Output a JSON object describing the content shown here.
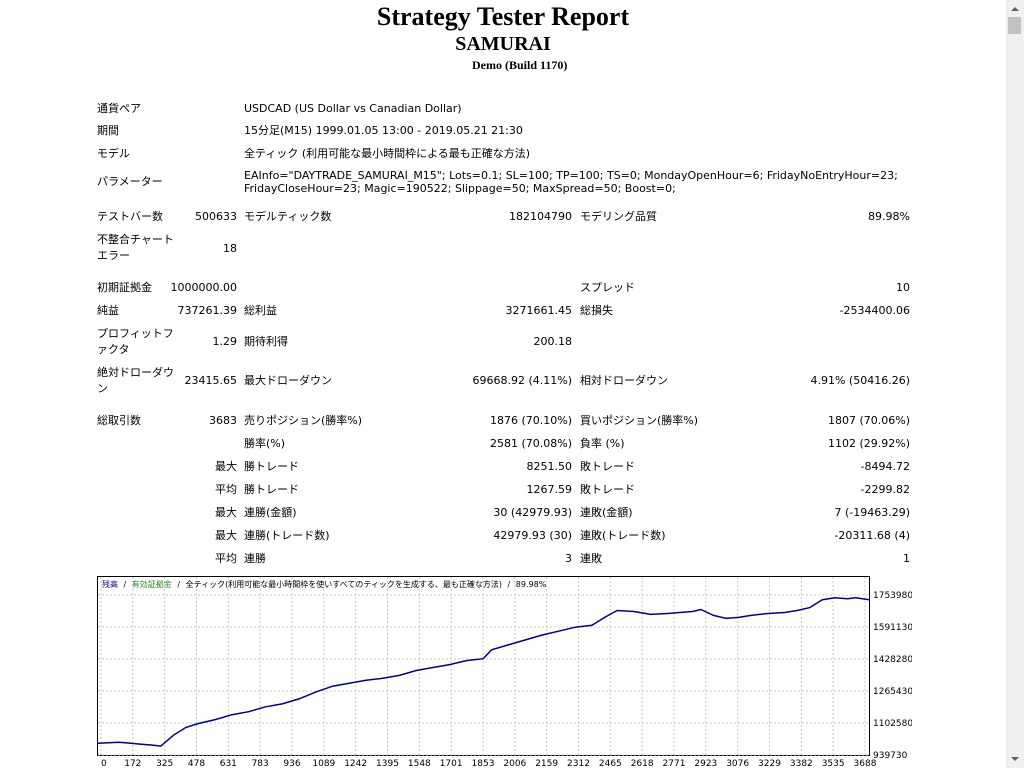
{
  "header": {
    "title": "Strategy Tester Report",
    "subtitle": "SAMURAI",
    "build": "Demo (Build 1170)"
  },
  "info": {
    "symbol_label": "通貨ペア",
    "symbol_value": "USDCAD (US Dollar vs Canadian Dollar)",
    "period_label": "期間",
    "period_value": "15分足(M15) 1999.01.05 13:00 - 2019.05.21 21:30",
    "model_label": "モデル",
    "model_value": "全ティック (利用可能な最小時間枠による最も正確な方法)",
    "params_label": "パラメーター",
    "params_line1": "EAInfo=\"DAYTRADE_SAMURAI_M15\"; Lots=0.1; SL=100; TP=100; TS=0; MondayOpenHour=6; FridayNoEntryHour=23;",
    "params_line2": "FridayCloseHour=23; Magic=190522; Slippage=50; MaxSpread=50; Boost=0;"
  },
  "stats": {
    "bars_label": "テストバー数",
    "bars_value": "500633",
    "ticks_label": "モデルティック数",
    "ticks_value": "182104790",
    "quality_label": "モデリング品質",
    "quality_value": "89.98%",
    "mismatch_label_1": "不整合チャート",
    "mismatch_label_2": "エラー",
    "mismatch_value": "18",
    "deposit_label": "初期証拠金",
    "deposit_value": "1000000.00",
    "spread_label": "スプレッド",
    "spread_value": "10",
    "net_label": "純益",
    "net_value": "737261.39",
    "gross_profit_label": "総利益",
    "gross_profit_value": "3271661.45",
    "gross_loss_label": "総損失",
    "gross_loss_value": "-2534400.06",
    "pf_label_1": "プロフィットフ",
    "pf_label_2": "ァクタ",
    "pf_value": "1.29",
    "expected_label": "期待利得",
    "expected_value": "200.18",
    "abs_dd_label_1": "絶対ドローダウ",
    "abs_dd_label_2": "ン",
    "abs_dd_value": "23415.65",
    "max_dd_label": "最大ドローダウン",
    "max_dd_value": "69668.92 (4.11%)",
    "rel_dd_label": "相対ドローダウン",
    "rel_dd_value": "4.91% (50416.26)",
    "trades_label": "総取引数",
    "trades_value": "3683",
    "short_label": "売りポジション(勝率%)",
    "short_value": "1876 (70.10%)",
    "long_label": "買いポジション(勝率%)",
    "long_value": "1807 (70.06%)",
    "win_rate_label": "勝率(%)",
    "win_rate_value": "2581 (70.08%)",
    "loss_rate_label": "負率 (%)",
    "loss_rate_value": "1102 (29.92%)",
    "max_label": "最大",
    "avg_label": "平均",
    "largest_win_label": "勝トレード",
    "largest_win_value": "8251.50",
    "largest_loss_label": "敗トレード",
    "largest_loss_value": "-8494.72",
    "avg_win_label": "勝トレード",
    "avg_win_value": "1267.59",
    "avg_loss_label": "敗トレード",
    "avg_loss_value": "-2299.82",
    "max_cons_win_label": "連勝(金額)",
    "max_cons_win_value": "30 (42979.93)",
    "max_cons_loss_label": "連敗(金額)",
    "max_cons_loss_value": "7 (-19463.29)",
    "max_cons_profit_label": "連勝(トレード数)",
    "max_cons_profit_value": "42979.93 (30)",
    "max_cons_lossamt_label": "連敗(トレード数)",
    "max_cons_lossamt_value": "-20311.68 (4)",
    "avg_cons_win_label": "連勝",
    "avg_cons_win_value": "3",
    "avg_cons_loss_label": "連敗",
    "avg_cons_loss_value": "1"
  },
  "chart_data": {
    "type": "line",
    "legend_balance": "残高",
    "legend_equity": "有効証拠金",
    "legend_info": "全ティック(利用可能な最小時間枠を使いすべてのティックを生成する、最も正確な方法)",
    "legend_quality": "89.98%",
    "legend_sep": "/",
    "x_ticks": [
      "0",
      "172",
      "325",
      "478",
      "631",
      "783",
      "936",
      "1089",
      "1242",
      "1395",
      "1548",
      "1701",
      "1853",
      "2006",
      "2159",
      "2312",
      "2465",
      "2618",
      "2771",
      "2923",
      "3076",
      "3229",
      "3382",
      "3535",
      "3688"
    ],
    "y_ticks": [
      "1753980",
      "1591130",
      "1428280",
      "1265430",
      "1102580",
      "939730"
    ],
    "xlim": [
      0,
      3683
    ],
    "ylim": [
      939730,
      1753980
    ],
    "x": [
      0,
      100,
      200,
      260,
      300,
      360,
      420,
      480,
      560,
      640,
      720,
      800,
      880,
      960,
      1040,
      1120,
      1200,
      1280,
      1360,
      1440,
      1520,
      1600,
      1680,
      1760,
      1840,
      1880,
      1960,
      2040,
      2120,
      2200,
      2280,
      2360,
      2420,
      2480,
      2560,
      2640,
      2720,
      2780,
      2840,
      2880,
      2940,
      3000,
      3060,
      3120,
      3200,
      3280,
      3340,
      3400,
      3460,
      3520,
      3580,
      3620,
      3683
    ],
    "y": [
      1000000,
      1005000,
      995000,
      990000,
      985000,
      1040000,
      1080000,
      1100000,
      1120000,
      1145000,
      1160000,
      1185000,
      1200000,
      1225000,
      1260000,
      1290000,
      1305000,
      1320000,
      1330000,
      1345000,
      1370000,
      1385000,
      1400000,
      1420000,
      1430000,
      1475000,
      1500000,
      1525000,
      1550000,
      1570000,
      1590000,
      1600000,
      1640000,
      1675000,
      1670000,
      1655000,
      1660000,
      1665000,
      1670000,
      1680000,
      1650000,
      1635000,
      1640000,
      1650000,
      1660000,
      1665000,
      1675000,
      1690000,
      1730000,
      1740000,
      1735000,
      1740000,
      1730000
    ]
  }
}
